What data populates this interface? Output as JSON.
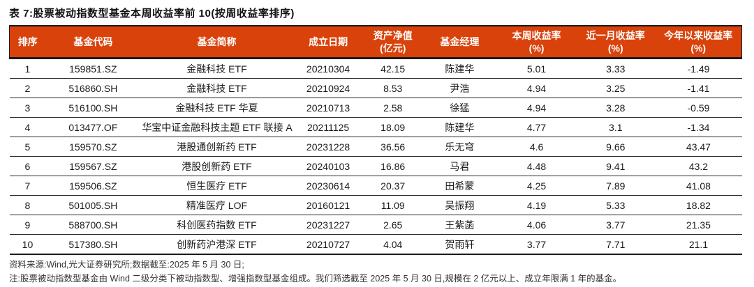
{
  "title": "表 7:股票被动指数型基金本周收益率前 10(按周收益率排序)",
  "colors": {
    "header_bg": "#D9420B",
    "header_text": "#ffffff",
    "rule_dark": "#1a1a1a"
  },
  "table": {
    "columns": [
      {
        "key": "rank",
        "label": "排序",
        "sublabel": ""
      },
      {
        "key": "fund-code",
        "label": "基金代码",
        "sublabel": ""
      },
      {
        "key": "fund-name",
        "label": "基金简称",
        "sublabel": ""
      },
      {
        "key": "inception-date",
        "label": "成立日期",
        "sublabel": ""
      },
      {
        "key": "net-assets",
        "label": "资产净值",
        "sublabel": "(亿元)"
      },
      {
        "key": "fund-manager",
        "label": "基金经理",
        "sublabel": ""
      },
      {
        "key": "weekly-return",
        "label": "本周收益率",
        "sublabel": "(%)"
      },
      {
        "key": "monthly-return",
        "label": "近一月收益率",
        "sublabel": "(%)"
      },
      {
        "key": "ytd-return",
        "label": "今年以来收益率",
        "sublabel": "(%)"
      }
    ],
    "rows": [
      [
        "1",
        "159851.SZ",
        "金融科技 ETF",
        "20210304",
        "42.15",
        "陈建华",
        "5.01",
        "3.33",
        "-1.49"
      ],
      [
        "2",
        "516860.SH",
        "金融科技 ETF",
        "20210924",
        "8.53",
        "尹浩",
        "4.94",
        "3.25",
        "-1.41"
      ],
      [
        "3",
        "516100.SH",
        "金融科技 ETF 华夏",
        "20210713",
        "2.58",
        "徐猛",
        "4.94",
        "3.28",
        "-0.59"
      ],
      [
        "4",
        "013477.OF",
        "华宝中证金融科技主题 ETF 联接 A",
        "20211125",
        "18.09",
        "陈建华",
        "4.77",
        "3.1",
        "-1.34"
      ],
      [
        "5",
        "159570.SZ",
        "港股通创新药 ETF",
        "20231228",
        "36.56",
        "乐无穹",
        "4.6",
        "9.66",
        "43.47"
      ],
      [
        "6",
        "159567.SZ",
        "港股创新药 ETF",
        "20240103",
        "16.86",
        "马君",
        "4.48",
        "9.41",
        "43.2"
      ],
      [
        "7",
        "159506.SZ",
        "恒生医疗 ETF",
        "20230614",
        "20.37",
        "田希蒙",
        "4.25",
        "7.89",
        "41.08"
      ],
      [
        "8",
        "501005.SH",
        "精准医疗 LOF",
        "20160121",
        "11.09",
        "吴振翔",
        "4.19",
        "5.33",
        "18.82"
      ],
      [
        "9",
        "588700.SH",
        "科创医药指数 ETF",
        "20231227",
        "2.65",
        "王紫菡",
        "4.06",
        "3.77",
        "21.35"
      ],
      [
        "10",
        "517380.SH",
        "创新药沪港深 ETF",
        "20210727",
        "4.04",
        "贺雨轩",
        "3.77",
        "7.71",
        "21.1"
      ]
    ]
  },
  "notes": {
    "source": "资料来源:Wind,光大证券研究所;数据截至:2025 年 5 月 30 日;",
    "note": "注:股票被动指数型基金由 Wind 二级分类下被动指数型、增强指数型基金组成。我们筛选截至 2025 年 5 月 30 日,规模在 2 亿元以上、成立年限满 1 年的基金。"
  }
}
